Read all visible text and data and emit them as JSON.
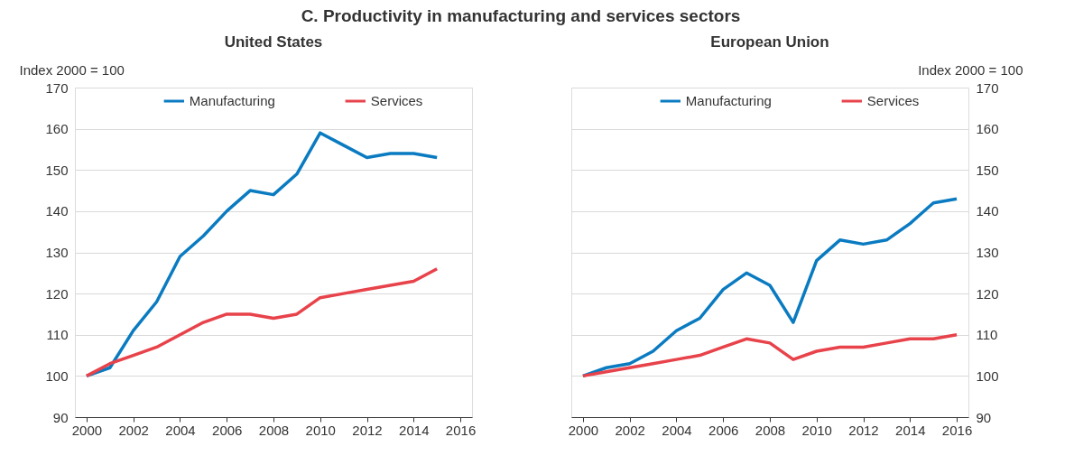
{
  "chart_data": [
    {
      "type": "line",
      "title": "C. Productivity in manufacturing and services sectors",
      "subtitle": "United States",
      "ylabel": "Index 2000 = 100",
      "x": [
        2000,
        2001,
        2002,
        2003,
        2004,
        2005,
        2006,
        2007,
        2008,
        2009,
        2010,
        2011,
        2012,
        2013,
        2014,
        2015
      ],
      "series": [
        {
          "name": "Manufacturing",
          "color": "#0a7bc1",
          "values": [
            100,
            102,
            111,
            118,
            129,
            134,
            140,
            145,
            144,
            149,
            159,
            156,
            153,
            154,
            154,
            153
          ]
        },
        {
          "name": "Services",
          "color": "#e8424a",
          "values": [
            100,
            103,
            105,
            107,
            110,
            113,
            115,
            115,
            114,
            115,
            119,
            120,
            121,
            122,
            123,
            126
          ]
        }
      ],
      "xlim": [
        1999.5,
        2016.5
      ],
      "xticks": [
        2000,
        2002,
        2004,
        2006,
        2008,
        2010,
        2012,
        2014,
        2016
      ],
      "ylim": [
        90,
        170
      ],
      "yticks": [
        90,
        100,
        110,
        120,
        130,
        140,
        150,
        160,
        170
      ],
      "grid": "y",
      "legend": "top",
      "marker": "none",
      "line_style": "solid"
    },
    {
      "type": "line",
      "subtitle": "European Union",
      "ylabel": "Index 2000 = 100",
      "x": [
        2000,
        2001,
        2002,
        2003,
        2004,
        2005,
        2006,
        2007,
        2008,
        2009,
        2010,
        2011,
        2012,
        2013,
        2014,
        2015,
        2016
      ],
      "series": [
        {
          "name": "Manufacturing",
          "color": "#0a7bc1",
          "values": [
            100,
            102,
            103,
            106,
            111,
            114,
            121,
            125,
            122,
            113,
            128,
            133,
            132,
            133,
            137,
            142,
            143
          ]
        },
        {
          "name": "Services",
          "color": "#e8424a",
          "values": [
            100,
            101,
            102,
            103,
            104,
            105,
            107,
            109,
            108,
            104,
            106,
            107,
            107,
            108,
            109,
            109,
            110
          ]
        }
      ],
      "xlim": [
        1999.5,
        2016.5
      ],
      "xticks": [
        2000,
        2002,
        2004,
        2006,
        2008,
        2010,
        2012,
        2014,
        2016
      ],
      "ylim": [
        90,
        170
      ],
      "yticks": [
        90,
        100,
        110,
        120,
        130,
        140,
        150,
        160,
        170
      ],
      "grid": "y",
      "legend": "top",
      "marker": "none",
      "line_style": "solid"
    }
  ]
}
